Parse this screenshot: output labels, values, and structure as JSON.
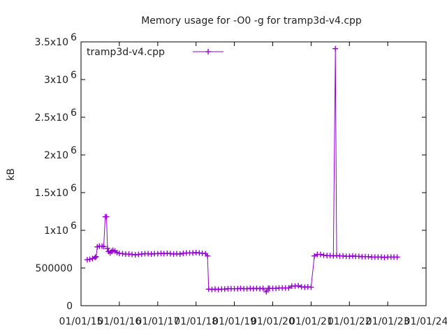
{
  "chart_data": {
    "type": "line",
    "title": "Memory usage for -O0 -g for tramp3d-v4.cpp",
    "xlabel": "",
    "ylabel": "kB",
    "xlim": [
      "2015-01-01",
      "2024-01-01"
    ],
    "ylim": [
      0,
      3500000
    ],
    "grid": false,
    "legend_position": "top-left",
    "y_ticks": [
      {
        "value": 0,
        "base": "0",
        "exp": ""
      },
      {
        "value": 500000,
        "base": "500000",
        "exp": ""
      },
      {
        "value": 1000000,
        "base": "1x10",
        "exp": "6"
      },
      {
        "value": 1500000,
        "base": "1.5x10",
        "exp": "6"
      },
      {
        "value": 2000000,
        "base": "2x10",
        "exp": "6"
      },
      {
        "value": 2500000,
        "base": "2.5x10",
        "exp": "6"
      },
      {
        "value": 3000000,
        "base": "3x10",
        "exp": "6"
      },
      {
        "value": 3500000,
        "base": "3.5x10",
        "exp": "6"
      }
    ],
    "x_ticks": [
      {
        "value": "2015-01-01",
        "label": "01/01/15"
      },
      {
        "value": "2016-01-01",
        "label": "01/01/16"
      },
      {
        "value": "2017-01-01",
        "label": "01/01/17"
      },
      {
        "value": "2018-01-01",
        "label": "01/01/18"
      },
      {
        "value": "2019-01-01",
        "label": "01/01/19"
      },
      {
        "value": "2020-01-01",
        "label": "01/01/20"
      },
      {
        "value": "2021-01-01",
        "label": "01/01/21"
      },
      {
        "value": "2022-01-01",
        "label": "01/01/22"
      },
      {
        "value": "2023-01-01",
        "label": "01/01/23"
      },
      {
        "value": "2024-01-01",
        "label": "01/01/24"
      }
    ],
    "series": [
      {
        "name": "tramp3d-v4.cpp",
        "color": "#9400d3",
        "marker": "plus",
        "points": [
          [
            "2015-03-01",
            610000
          ],
          [
            "2015-03-25",
            615000
          ],
          [
            "2015-04-20",
            625000
          ],
          [
            "2015-05-15",
            640000
          ],
          [
            "2015-05-25",
            650000
          ],
          [
            "2015-06-05",
            780000
          ],
          [
            "2015-06-25",
            790000
          ],
          [
            "2015-07-20",
            790000
          ],
          [
            "2015-08-05",
            785000
          ],
          [
            "2015-08-20",
            1180000
          ],
          [
            "2015-09-01",
            1180000
          ],
          [
            "2015-09-10",
            760000
          ],
          [
            "2015-09-20",
            720000
          ],
          [
            "2015-10-05",
            700000
          ],
          [
            "2015-10-20",
            720000
          ],
          [
            "2015-11-01",
            735000
          ],
          [
            "2015-11-20",
            725000
          ],
          [
            "2015-12-10",
            705000
          ],
          [
            "2016-01-01",
            695000
          ],
          [
            "2016-02-01",
            690000
          ],
          [
            "2016-03-01",
            685000
          ],
          [
            "2016-04-01",
            685000
          ],
          [
            "2016-05-01",
            680000
          ],
          [
            "2016-06-01",
            675000
          ],
          [
            "2016-07-01",
            680000
          ],
          [
            "2016-08-01",
            685000
          ],
          [
            "2016-09-01",
            690000
          ],
          [
            "2016-10-01",
            690000
          ],
          [
            "2016-11-01",
            685000
          ],
          [
            "2016-12-01",
            690000
          ],
          [
            "2017-01-01",
            690000
          ],
          [
            "2017-02-01",
            695000
          ],
          [
            "2017-03-01",
            690000
          ],
          [
            "2017-04-01",
            695000
          ],
          [
            "2017-05-01",
            690000
          ],
          [
            "2017-06-01",
            685000
          ],
          [
            "2017-07-01",
            690000
          ],
          [
            "2017-08-01",
            685000
          ],
          [
            "2017-09-01",
            695000
          ],
          [
            "2017-10-01",
            700000
          ],
          [
            "2017-11-01",
            700000
          ],
          [
            "2017-12-01",
            700000
          ],
          [
            "2018-01-01",
            705000
          ],
          [
            "2018-02-01",
            700000
          ],
          [
            "2018-03-01",
            695000
          ],
          [
            "2018-04-01",
            690000
          ],
          [
            "2018-04-20",
            660000
          ],
          [
            "2018-05-01",
            220000
          ],
          [
            "2018-06-01",
            215000
          ],
          [
            "2018-07-01",
            220000
          ],
          [
            "2018-08-01",
            215000
          ],
          [
            "2018-09-01",
            220000
          ],
          [
            "2018-10-01",
            220000
          ],
          [
            "2018-11-01",
            225000
          ],
          [
            "2018-12-01",
            225000
          ],
          [
            "2019-01-01",
            225000
          ],
          [
            "2019-02-01",
            225000
          ],
          [
            "2019-03-01",
            230000
          ],
          [
            "2019-04-01",
            225000
          ],
          [
            "2019-05-01",
            225000
          ],
          [
            "2019-06-01",
            230000
          ],
          [
            "2019-07-01",
            225000
          ],
          [
            "2019-08-01",
            230000
          ],
          [
            "2019-09-01",
            225000
          ],
          [
            "2019-10-01",
            230000
          ],
          [
            "2019-11-01",
            185000
          ],
          [
            "2019-11-20",
            230000
          ],
          [
            "2019-12-01",
            230000
          ],
          [
            "2020-01-01",
            230000
          ],
          [
            "2020-02-01",
            230000
          ],
          [
            "2020-03-01",
            235000
          ],
          [
            "2020-04-01",
            235000
          ],
          [
            "2020-05-01",
            235000
          ],
          [
            "2020-06-01",
            235000
          ],
          [
            "2020-07-01",
            260000
          ],
          [
            "2020-08-01",
            260000
          ],
          [
            "2020-09-01",
            265000
          ],
          [
            "2020-10-01",
            250000
          ],
          [
            "2020-11-01",
            245000
          ],
          [
            "2020-12-01",
            250000
          ],
          [
            "2021-01-01",
            245000
          ],
          [
            "2021-02-01",
            660000
          ],
          [
            "2021-03-01",
            680000
          ],
          [
            "2021-04-01",
            680000
          ],
          [
            "2021-05-01",
            670000
          ],
          [
            "2021-06-01",
            665000
          ],
          [
            "2021-07-01",
            665000
          ],
          [
            "2021-08-01",
            660000
          ],
          [
            "2021-08-20",
            3410000
          ],
          [
            "2021-09-01",
            665000
          ],
          [
            "2021-10-01",
            660000
          ],
          [
            "2021-11-01",
            660000
          ],
          [
            "2021-12-01",
            655000
          ],
          [
            "2022-01-01",
            655000
          ],
          [
            "2022-02-01",
            660000
          ],
          [
            "2022-03-01",
            655000
          ],
          [
            "2022-04-01",
            655000
          ],
          [
            "2022-05-01",
            650000
          ],
          [
            "2022-06-01",
            650000
          ],
          [
            "2022-07-01",
            650000
          ],
          [
            "2022-08-01",
            645000
          ],
          [
            "2022-09-01",
            645000
          ],
          [
            "2022-10-01",
            645000
          ],
          [
            "2022-11-01",
            645000
          ],
          [
            "2022-12-01",
            640000
          ],
          [
            "2023-01-01",
            645000
          ],
          [
            "2023-02-01",
            645000
          ],
          [
            "2023-03-01",
            645000
          ],
          [
            "2023-04-01",
            645000
          ]
        ]
      }
    ]
  }
}
